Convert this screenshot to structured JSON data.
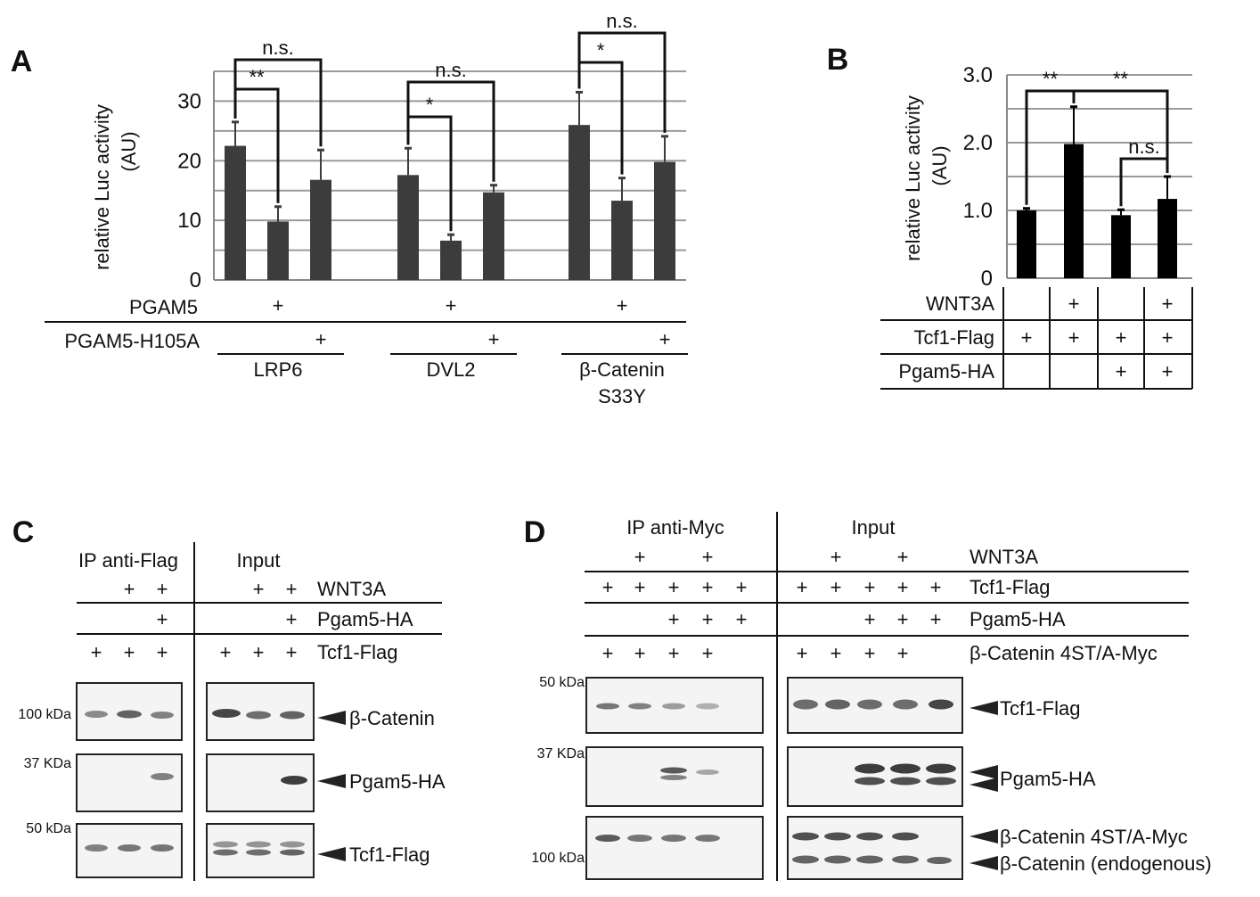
{
  "panels": {
    "a": {
      "letter": "A"
    },
    "b": {
      "letter": "B"
    },
    "c": {
      "letter": "C"
    },
    "d": {
      "letter": "D"
    }
  },
  "chart_data": [
    {
      "type": "bar",
      "panel": "A",
      "ylabel": "relative Luc activity",
      "ylabel_unit": "(AU)",
      "ylim": [
        0,
        35
      ],
      "yticks": [
        "0",
        "10",
        "20",
        "30"
      ],
      "grid": true,
      "groups": [
        {
          "label": "LRP6",
          "values": [
            22.5,
            9.8,
            16.8
          ],
          "errors": [
            4.0,
            2.5,
            5.0
          ]
        },
        {
          "label": "DVL2",
          "values": [
            17.6,
            6.6,
            14.7
          ],
          "errors": [
            4.5,
            1.0,
            1.2
          ]
        },
        {
          "label": "β-Catenin",
          "label2": "S33Y",
          "values": [
            26.0,
            13.3,
            19.8
          ],
          "errors": [
            5.5,
            3.8,
            4.3
          ]
        }
      ],
      "row_labels": [
        "PGAM5",
        "PGAM5-H105A"
      ],
      "plus": "+",
      "significance": [
        {
          "group": 0,
          "from": 0,
          "to": 1,
          "label": "**"
        },
        {
          "group": 0,
          "from": 0,
          "to": 2,
          "label": "n.s."
        },
        {
          "group": 1,
          "from": 0,
          "to": 1,
          "label": "*"
        },
        {
          "group": 1,
          "from": 0,
          "to": 2,
          "label": "n.s."
        },
        {
          "group": 2,
          "from": 0,
          "to": 1,
          "label": "*"
        },
        {
          "group": 2,
          "from": 0,
          "to": 2,
          "label": "n.s."
        }
      ]
    },
    {
      "type": "bar",
      "panel": "B",
      "ylabel": "relative Luc activity",
      "ylabel_unit": "(AU)",
      "ylim": [
        0,
        3.0
      ],
      "yticks": [
        "0",
        "1.0",
        "2.0",
        "3.0"
      ],
      "grid": true,
      "values": [
        1.0,
        1.98,
        0.93,
        1.17
      ],
      "errors": [
        0.03,
        0.55,
        0.08,
        0.33
      ],
      "table_rows": [
        {
          "label": "WNT3A",
          "cells": [
            "",
            "+",
            "",
            "+"
          ]
        },
        {
          "label": "Tcf1-Flag",
          "cells": [
            "+",
            "+",
            "+",
            "+"
          ]
        },
        {
          "label": "Pgam5-HA",
          "cells": [
            "",
            "",
            "+",
            "+"
          ]
        }
      ],
      "significance": [
        {
          "from": 0,
          "to": 1,
          "label": "**"
        },
        {
          "from": 1,
          "to": 3,
          "label": "**"
        },
        {
          "from": 2,
          "to": 3,
          "label": "n.s."
        }
      ]
    }
  ],
  "blot_c": {
    "section_left": "IP anti-Flag",
    "section_right": "Input",
    "rows": [
      {
        "label": "WNT3A",
        "left": [
          "",
          "+",
          "+"
        ],
        "right": [
          "",
          "+",
          "+"
        ]
      },
      {
        "label": "Pgam5-HA",
        "left": [
          "",
          "",
          "+"
        ],
        "right": [
          "",
          "",
          "+"
        ]
      },
      {
        "label": "Tcf1-Flag",
        "left": [
          "+",
          "+",
          "+"
        ],
        "right": [
          "+",
          "+",
          "+"
        ]
      }
    ],
    "markers": [
      "100 kDa",
      "37 KDa",
      "50 kDa"
    ],
    "bands": [
      "β-Catenin",
      "Pgam5-HA",
      "Tcf1-Flag"
    ]
  },
  "blot_d": {
    "section_left": "IP anti-Myc",
    "section_right": "Input",
    "rows": [
      {
        "label": "WNT3A",
        "cells": [
          "",
          "+",
          "",
          "+",
          ""
        ]
      },
      {
        "label": "Tcf1-Flag",
        "cells": [
          "+",
          "+",
          "+",
          "+",
          "+"
        ]
      },
      {
        "label": "Pgam5-HA",
        "cells": [
          "",
          "",
          "+",
          "+",
          "+"
        ]
      },
      {
        "label": "β-Catenin 4ST/A-Myc",
        "cells": [
          "+",
          "+",
          "+",
          "+",
          ""
        ]
      }
    ],
    "markers": [
      "50 kDa",
      "37 KDa",
      "100 kDa"
    ],
    "bands": [
      "Tcf1-Flag",
      "Pgam5-HA",
      "β-Catenin 4ST/A-Myc",
      "β-Catenin (endogenous)"
    ]
  }
}
